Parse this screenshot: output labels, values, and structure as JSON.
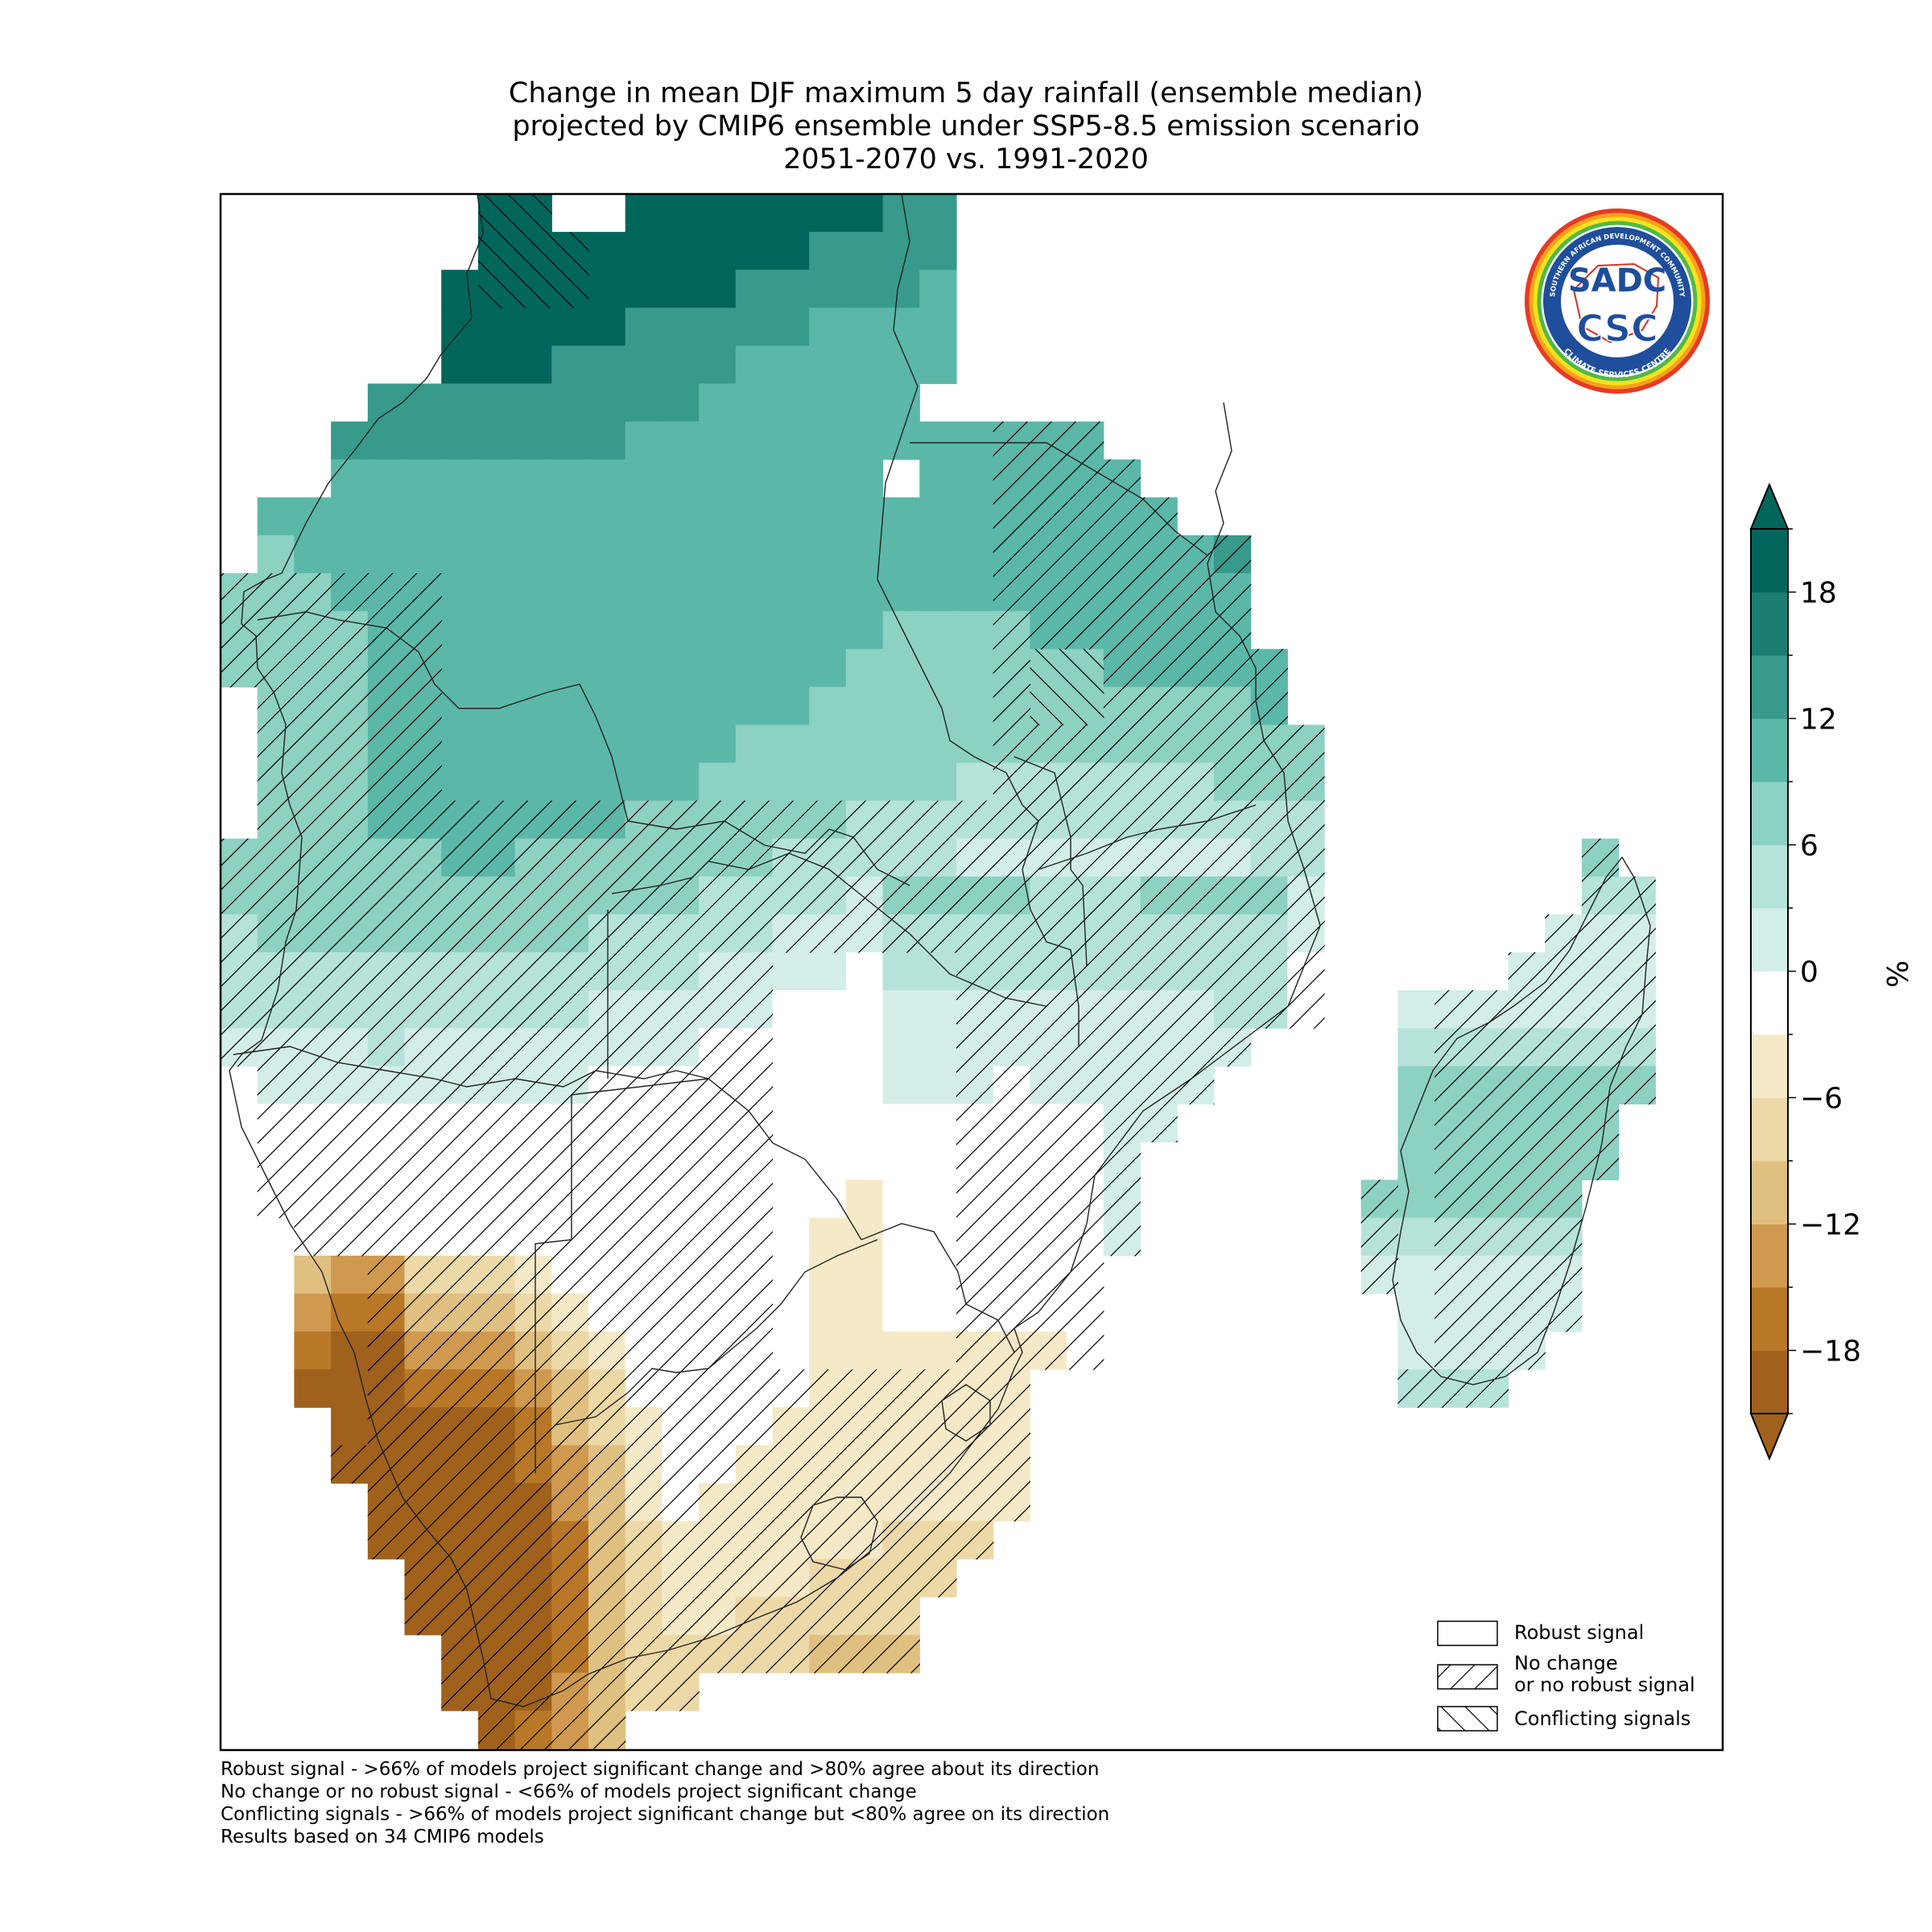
{
  "title": {
    "line1": "Change in mean DJF maximum 5 day rainfall (ensemble median)",
    "line2": "projected by CMIP6 ensemble under SSP5-8.5 emission scenario",
    "line3": "2051-2070 vs. 1991-2020"
  },
  "logo": {
    "ring_text_top": "SOUTHERN AFRICAN DEVELOPMENT COMMUNITY",
    "ring_text_bottom": "CLIMATE SERVICES CENTRE",
    "sadc": "SADC",
    "csc": "CSC"
  },
  "legend": {
    "robust": "Robust signal",
    "nochange_line1": "No change",
    "nochange_line2": "or no robust signal",
    "conflicting": "Conflicting signals"
  },
  "colorbar": {
    "unit": "%",
    "ticks": [
      "18",
      "12",
      "6",
      "0",
      "−6",
      "−12",
      "−18"
    ],
    "colors": [
      "#a0611c",
      "#b87828",
      "#cf9a4f",
      "#e0c081",
      "#edd9a8",
      "#f5e9c8",
      "#ffffff",
      "#d3eee9",
      "#b5e3da",
      "#8dd1c3",
      "#5bb8a8",
      "#379a8c",
      "#1c7d72",
      "#00665c"
    ]
  },
  "notes": {
    "line1": "Robust signal - >66% of models project significant change and >80% agree about its direction",
    "line2": "No change or no robust signal - <66% of models project significant change",
    "line3": "Conflicting signals - >66% of models project significant change but <80% agree on its direction",
    "line4": "Results based on 34 CMIP6 models"
  }
}
